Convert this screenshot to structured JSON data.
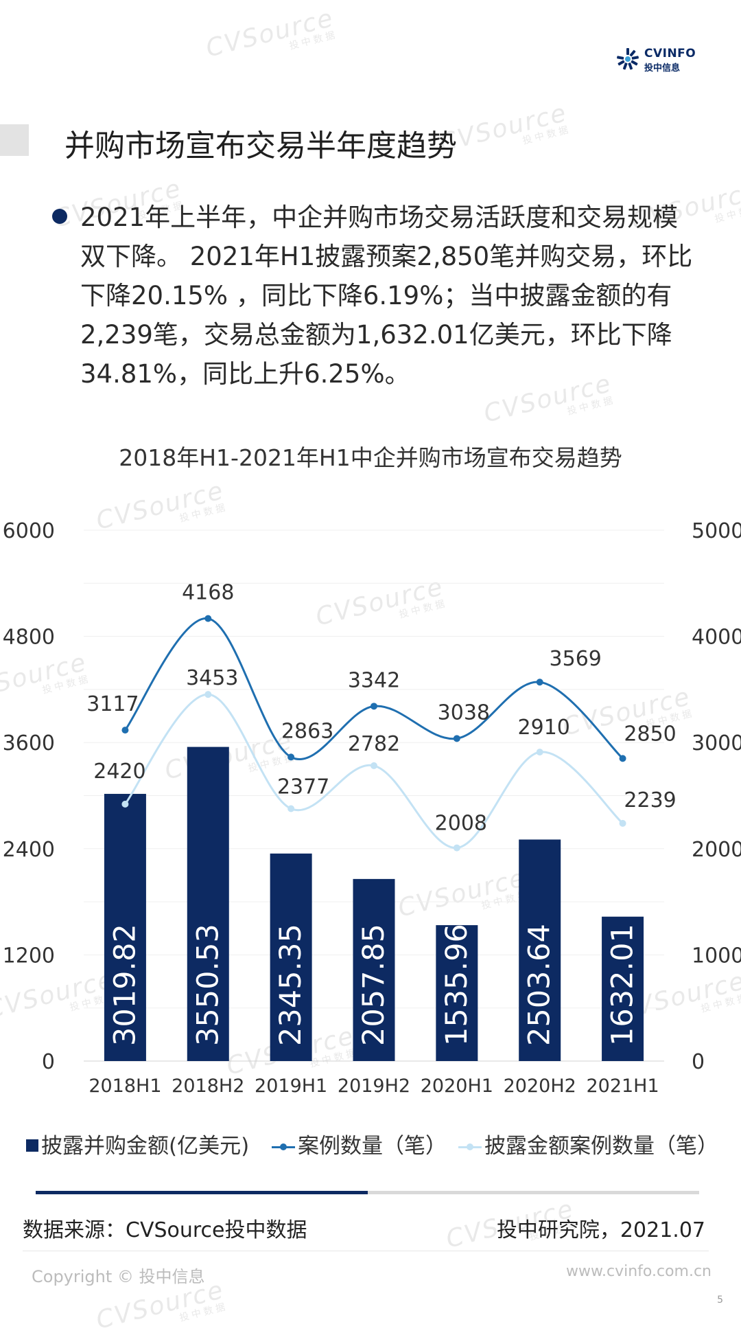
{
  "header": {
    "logo_brand": "CVINFO",
    "logo_brand_sub": "投中信息"
  },
  "page": {
    "title": "并购市场宣布交易半年度趋势",
    "bullet": "2021年上半年，中企并购市场交易活跃度和交易规模双下降。 2021年H1披露预案2,850笔并购交易，环比下降20.15% ，同比下降6.19%；当中披露金额的有2,239笔，交易总金额为1,632.01亿美元，环比下降34.81%，同比上升6.25%。"
  },
  "watermark": {
    "text": "CVSource",
    "sub": "投中数据"
  },
  "chart_data": {
    "type": "bar",
    "title": "2018年H1-2021年H1中企并购市场宣布交易趋势",
    "categories": [
      "2018H1",
      "2018H2",
      "2019H1",
      "2019H2",
      "2020H1",
      "2020H2",
      "2021H1"
    ],
    "series": [
      {
        "name": "披露并购金额(亿美元)",
        "type": "bar",
        "axis": "left",
        "color": "#0d2a62",
        "values": [
          3019.82,
          3550.53,
          2345.35,
          2057.85,
          1535.96,
          2503.64,
          1632.01
        ]
      },
      {
        "name": "案例数量（笔）",
        "type": "line",
        "axis": "right",
        "color": "#1f6fb0",
        "values": [
          3117,
          4168,
          2863,
          3342,
          3038,
          3569,
          2850
        ]
      },
      {
        "name": "披露金额案例数量（笔）",
        "type": "line",
        "axis": "right",
        "color": "#c3e2f4",
        "values": [
          2420,
          3453,
          2377,
          2782,
          2008,
          2910,
          2239
        ]
      }
    ],
    "y_left": {
      "min": 0,
      "max": 6000,
      "ticks": [
        0,
        1200,
        2400,
        3600,
        4800,
        6000
      ]
    },
    "y_right": {
      "min": 0,
      "max": 5000,
      "ticks": [
        0,
        1000,
        2000,
        3000,
        4000,
        5000
      ]
    },
    "grid": true,
    "legend_position": "bottom"
  },
  "footer": {
    "source": "数据来源：CVSource投中数据",
    "institute": "投中研究院，2021.07",
    "copyright": "Copyright © 投中信息",
    "website": "www.cvinfo.com.cn",
    "page_number": "5"
  }
}
